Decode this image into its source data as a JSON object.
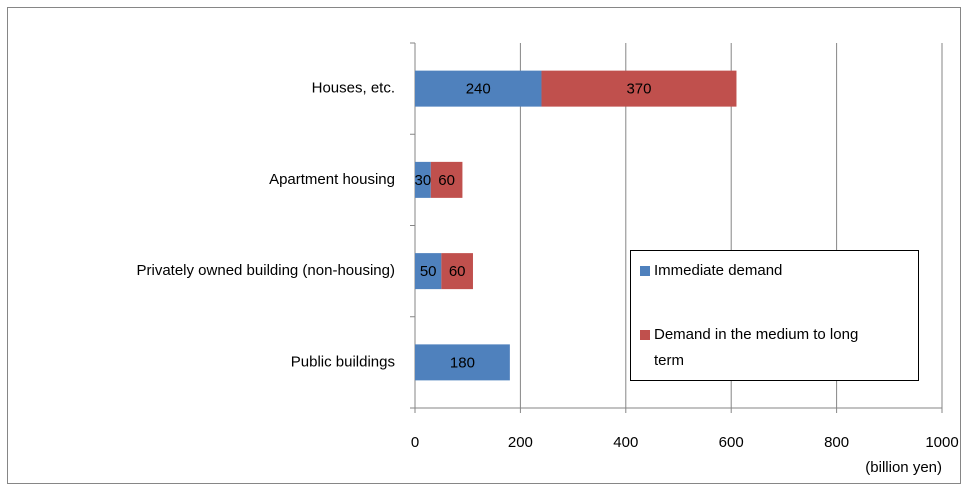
{
  "chart_data": {
    "type": "stacked-bar-horizontal",
    "categories": [
      "Houses, etc.",
      "Apartment housing",
      "Privately owned building (non-housing)",
      "Public buildings"
    ],
    "series": [
      {
        "name": "Immediate demand",
        "color": "#4f81bd",
        "values": [
          240,
          30,
          50,
          180
        ]
      },
      {
        "name": "Demand in the medium to long term",
        "color": "#c0504d",
        "values": [
          370,
          60,
          60,
          null
        ]
      }
    ],
    "xlim": [
      0,
      1000
    ],
    "xticks": [
      0,
      200,
      400,
      600,
      800,
      1000
    ],
    "x_axis_label": "(billion yen)",
    "grid": true,
    "legend": "lower right"
  }
}
